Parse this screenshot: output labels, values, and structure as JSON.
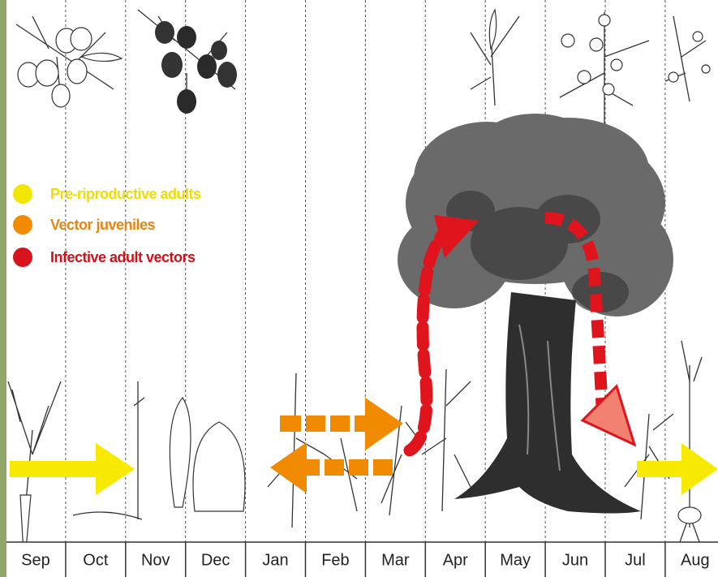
{
  "legend": [
    {
      "label": "Pre-riproductive adults"
    },
    {
      "label": "Vector juveniles"
    },
    {
      "label": "Infective adult vectors"
    }
  ],
  "months": [
    "Sep",
    "Oct",
    "Nov",
    "Dec",
    "Jan",
    "Feb",
    "Mar",
    "Apr",
    "May",
    "Jun",
    "Jul",
    "Aug"
  ]
}
